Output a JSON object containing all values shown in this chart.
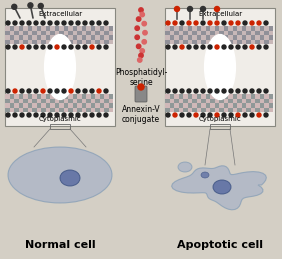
{
  "bg_color": "#d4cfc5",
  "box_bg": "#f0ede8",
  "box_border": "#888880",
  "mem_checker_dark": "#888890",
  "mem_checker_light": "#d8c8c8",
  "mem_dot_black": "#222222",
  "mem_dot_red": "#cc2200",
  "cell_fill": "#9aaac8",
  "cell_edge": "#7090b0",
  "nucleus_fill": "#5568a0",
  "nucleus_edge": "#3a5080",
  "title_left": "Normal cell",
  "title_right": "Apoptotic cell",
  "label_extra": "Extracellular",
  "label_cyto": "Cytoplasmic",
  "label_phos": "Phosphatidyl-\nserine",
  "label_annex": "Annexin-V\nconjugate",
  "figsize": [
    2.82,
    2.59
  ],
  "dpi": 100
}
